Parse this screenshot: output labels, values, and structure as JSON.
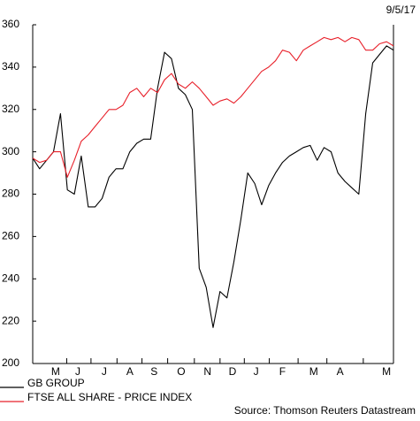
{
  "chart_data": {
    "type": "line",
    "date": "9/5/17",
    "source": "Source: Thomson Reuters Datastream",
    "xlim": [
      0,
      52
    ],
    "xticks": [
      {
        "value": 3.3,
        "label": "M"
      },
      {
        "value": 6.5,
        "label": "J"
      },
      {
        "value": 10.3,
        "label": "J"
      },
      {
        "value": 14,
        "label": "A"
      },
      {
        "value": 17.5,
        "label": "S"
      },
      {
        "value": 21.4,
        "label": "O"
      },
      {
        "value": 25.2,
        "label": "N"
      },
      {
        "value": 28.8,
        "label": "D"
      },
      {
        "value": 32.2,
        "label": "J"
      },
      {
        "value": 36,
        "label": "F"
      },
      {
        "value": 40.5,
        "label": "M"
      },
      {
        "value": 44.3,
        "label": "A"
      },
      {
        "value": 51,
        "label": "M"
      }
    ],
    "ylim": [
      200,
      360
    ],
    "yticks": [
      200,
      220,
      240,
      260,
      280,
      300,
      320,
      340,
      360
    ],
    "series": [
      {
        "name": "GB GROUP",
        "color": "#000000",
        "values": [
          297,
          292,
          296,
          300,
          318,
          282,
          280,
          298,
          274,
          274,
          278,
          288,
          292,
          292,
          300,
          304,
          306,
          306,
          330,
          347,
          344,
          330,
          327,
          320,
          245,
          236,
          217,
          234,
          231,
          248,
          268,
          290,
          285,
          275,
          284,
          290,
          295,
          298,
          300,
          302,
          303,
          296,
          302,
          300,
          290,
          286,
          283,
          280,
          318,
          342,
          346,
          350,
          348
        ]
      },
      {
        "name": "FTSE ALL SHARE - PRICE INDEX",
        "color": "#e8202a",
        "values": [
          297,
          295,
          296,
          300,
          300,
          288,
          296,
          305,
          308,
          312,
          316,
          320,
          320,
          322,
          328,
          330,
          326,
          330,
          328,
          334,
          337,
          332,
          330,
          333,
          330,
          326,
          322,
          324,
          325,
          323,
          326,
          330,
          334,
          338,
          340,
          343,
          348,
          347,
          343,
          348,
          350,
          352,
          354,
          353,
          354,
          352,
          354,
          353,
          348,
          348,
          351,
          352,
          350
        ]
      }
    ]
  }
}
